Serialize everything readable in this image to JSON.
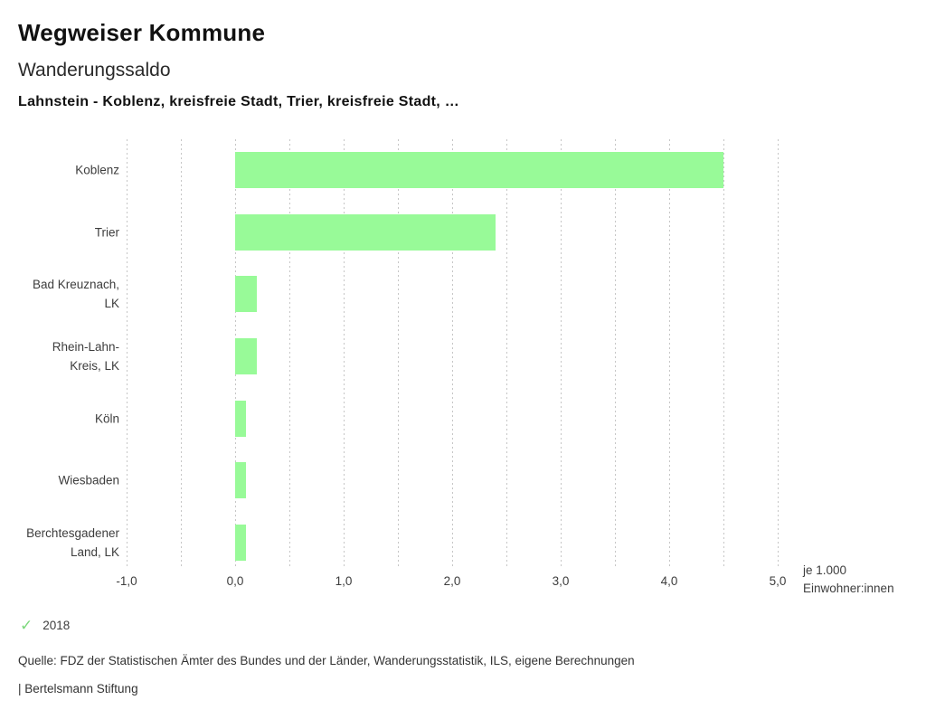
{
  "header": {
    "title": "Wegweiser Kommune",
    "subtitle": "Wanderungssaldo",
    "selection": "Lahnstein - Koblenz, kreisfreie Stadt, Trier, kreisfreie Stadt, …"
  },
  "chart_data": {
    "type": "bar",
    "orientation": "horizontal",
    "title": "Wanderungssaldo",
    "categories": [
      "Koblenz",
      "Trier",
      "Bad Kreuznach, LK",
      "Rhein-Lahn-Kreis, LK",
      "Köln",
      "Wiesbaden",
      "Berchtesgadener Land, LK"
    ],
    "category_label_lines": [
      [
        "Koblenz"
      ],
      [
        "Trier"
      ],
      [
        "Bad Kreuznach,",
        "LK"
      ],
      [
        "Rhein-Lahn-",
        "Kreis, LK"
      ],
      [
        "Köln"
      ],
      [
        "Wiesbaden"
      ],
      [
        "Berchtesgadener",
        "Land, LK"
      ]
    ],
    "series": [
      {
        "name": "2018",
        "values": [
          4.5,
          2.4,
          0.2,
          0.2,
          0.1,
          0.1,
          0.1
        ]
      }
    ],
    "xlim": [
      -1.0,
      5.0
    ],
    "grid_step": 0.5,
    "grid": true,
    "tick_values": [
      -1,
      0,
      1,
      2,
      3,
      4,
      5
    ],
    "tick_labels": [
      "-1,0",
      "0,0",
      "1,0",
      "2,0",
      "3,0",
      "4,0",
      "5,0"
    ],
    "xlabel": "je 1.000 Einwohner:innen",
    "unit_label_lines": [
      "je 1.000",
      "Einwohner:innen"
    ],
    "bar_color": "#98fa98",
    "legend_position": "bottom-left"
  },
  "legend": {
    "check_glyph": "✓",
    "check_color": "#7cd87c",
    "year": "2018"
  },
  "footer": {
    "source": "Quelle: FDZ der Statistischen Ämter des Bundes und der Länder, Wanderungsstatistik, ILS, eigene Berechnungen",
    "branding": "| Bertelsmann Stiftung"
  }
}
